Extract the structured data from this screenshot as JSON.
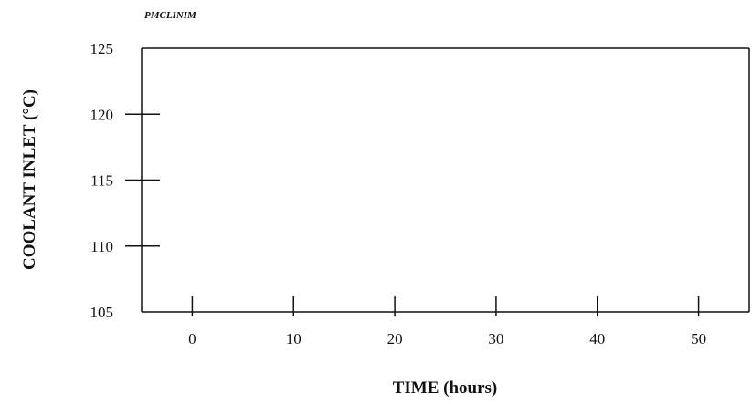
{
  "header_label": "PMCLINIM",
  "chart_data": {
    "type": "line",
    "title": "",
    "xlabel": "TIME (hours)",
    "ylabel": "COOLANT INLET (°C)",
    "xlim": [
      -5,
      55
    ],
    "ylim": [
      105,
      125
    ],
    "x_ticks": [
      0,
      10,
      20,
      30,
      40,
      50
    ],
    "y_ticks": [
      105,
      110,
      115,
      120,
      125
    ],
    "grid": false,
    "series": []
  }
}
